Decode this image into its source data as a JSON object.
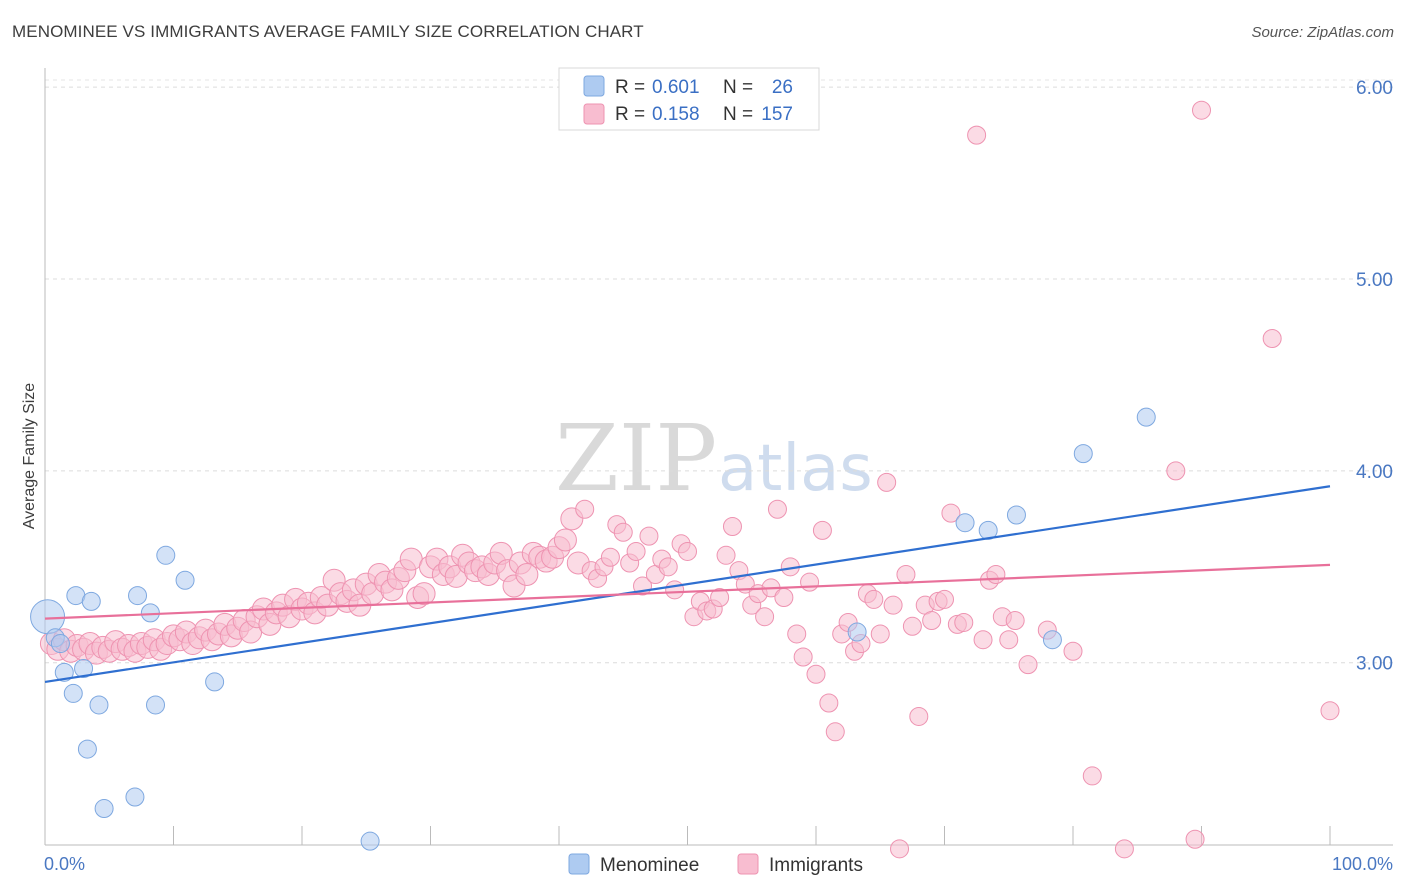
{
  "header": {
    "title": "MENOMINEE VS IMMIGRANTS AVERAGE FAMILY SIZE CORRELATION CHART",
    "source": "Source: ZipAtlas.com"
  },
  "watermark": {
    "zip": "ZIP",
    "atlas": "atlas"
  },
  "legend": {
    "rows": [
      {
        "r_label": "R =",
        "r_value": "0.601",
        "n_label": "N =",
        "n_value": "26",
        "color": "#aecbf1"
      },
      {
        "r_label": "R =",
        "r_value": "0.158",
        "n_label": "N =",
        "n_value": "157",
        "color": "#f8bdd0"
      }
    ]
  },
  "bottom_legend": [
    {
      "label": "Menominee",
      "color": "#aecbf1"
    },
    {
      "label": "Immigrants",
      "color": "#f8bdd0"
    }
  ],
  "chart_data": {
    "type": "scatter",
    "title": "MENOMINEE VS IMMIGRANTS AVERAGE FAMILY SIZE CORRELATION CHART",
    "xlabel": "",
    "ylabel": "Average Family Size",
    "xlim": [
      0,
      100
    ],
    "ylim": [
      2.05,
      6.1
    ],
    "x_tick_labels": [
      "0.0%",
      "100.0%"
    ],
    "y_ticks": [
      3.0,
      4.0,
      5.0,
      6.0
    ],
    "y_tick_labels": [
      "3.00",
      "4.00",
      "5.00",
      "6.00"
    ],
    "grid": true,
    "legend_position": "top-center",
    "series": [
      {
        "name": "Menominee",
        "color": "#aecbf1",
        "stroke": "#7ea8e0",
        "trend_color": "#2f6fd0",
        "trend": [
          [
            0,
            2.9
          ],
          [
            100,
            3.92
          ]
        ],
        "points": [
          [
            0.2,
            3.24
          ],
          [
            0.8,
            3.13
          ],
          [
            1.2,
            3.1
          ],
          [
            1.5,
            2.95
          ],
          [
            2.2,
            2.84
          ],
          [
            2.4,
            3.35
          ],
          [
            3.0,
            2.97
          ],
          [
            3.3,
            2.55
          ],
          [
            3.6,
            3.32
          ],
          [
            4.2,
            2.78
          ],
          [
            4.6,
            2.24
          ],
          [
            7.0,
            2.3
          ],
          [
            7.2,
            3.35
          ],
          [
            8.2,
            3.26
          ],
          [
            8.6,
            2.78
          ],
          [
            9.4,
            3.56
          ],
          [
            10.9,
            3.43
          ],
          [
            13.2,
            2.9
          ],
          [
            25.3,
            2.07
          ],
          [
            63.2,
            3.16
          ],
          [
            71.6,
            3.73
          ],
          [
            73.4,
            3.69
          ],
          [
            75.6,
            3.77
          ],
          [
            78.4,
            3.12
          ],
          [
            80.8,
            4.09
          ],
          [
            85.7,
            4.28
          ]
        ]
      },
      {
        "name": "Immigrants",
        "color": "#f8bdd0",
        "stroke": "#ee93b1",
        "trend_color": "#e8709a",
        "trend": [
          [
            0,
            3.23
          ],
          [
            100,
            3.51
          ]
        ],
        "points": [
          [
            0.5,
            3.1
          ],
          [
            1.0,
            3.07
          ],
          [
            1.5,
            3.12
          ],
          [
            2.0,
            3.06
          ],
          [
            2.5,
            3.09
          ],
          [
            3.0,
            3.07
          ],
          [
            3.5,
            3.1
          ],
          [
            4.0,
            3.05
          ],
          [
            4.5,
            3.08
          ],
          [
            5.0,
            3.06
          ],
          [
            5.5,
            3.11
          ],
          [
            6.0,
            3.07
          ],
          [
            6.5,
            3.09
          ],
          [
            7.0,
            3.06
          ],
          [
            7.5,
            3.1
          ],
          [
            8.0,
            3.08
          ],
          [
            8.5,
            3.12
          ],
          [
            9.0,
            3.07
          ],
          [
            9.5,
            3.1
          ],
          [
            10.0,
            3.14
          ],
          [
            10.5,
            3.12
          ],
          [
            11.0,
            3.16
          ],
          [
            11.5,
            3.1
          ],
          [
            12.0,
            3.13
          ],
          [
            12.5,
            3.17
          ],
          [
            13.0,
            3.12
          ],
          [
            13.5,
            3.15
          ],
          [
            14.0,
            3.2
          ],
          [
            14.5,
            3.14
          ],
          [
            15.0,
            3.18
          ],
          [
            15.5,
            3.22
          ],
          [
            16.0,
            3.16
          ],
          [
            16.5,
            3.24
          ],
          [
            17.0,
            3.28
          ],
          [
            17.5,
            3.2
          ],
          [
            18.0,
            3.26
          ],
          [
            18.5,
            3.3
          ],
          [
            19.0,
            3.24
          ],
          [
            19.5,
            3.33
          ],
          [
            20.0,
            3.28
          ],
          [
            20.5,
            3.31
          ],
          [
            21.0,
            3.26
          ],
          [
            21.5,
            3.34
          ],
          [
            22.0,
            3.3
          ],
          [
            22.5,
            3.43
          ],
          [
            23.0,
            3.36
          ],
          [
            23.5,
            3.32
          ],
          [
            24.0,
            3.38
          ],
          [
            24.5,
            3.3
          ],
          [
            25.0,
            3.41
          ],
          [
            25.5,
            3.36
          ],
          [
            26.0,
            3.46
          ],
          [
            26.5,
            3.42
          ],
          [
            27.0,
            3.38
          ],
          [
            27.5,
            3.44
          ],
          [
            28.0,
            3.48
          ],
          [
            28.5,
            3.54
          ],
          [
            29.0,
            3.34
          ],
          [
            29.5,
            3.36
          ],
          [
            30.0,
            3.5
          ],
          [
            30.5,
            3.54
          ],
          [
            31.0,
            3.46
          ],
          [
            31.5,
            3.5
          ],
          [
            32.0,
            3.45
          ],
          [
            32.5,
            3.56
          ],
          [
            33.0,
            3.52
          ],
          [
            33.5,
            3.48
          ],
          [
            34.0,
            3.5
          ],
          [
            34.5,
            3.46
          ],
          [
            35.0,
            3.52
          ],
          [
            35.5,
            3.57
          ],
          [
            36.0,
            3.48
          ],
          [
            36.5,
            3.4
          ],
          [
            37.0,
            3.52
          ],
          [
            37.5,
            3.46
          ],
          [
            38.0,
            3.57
          ],
          [
            38.5,
            3.55
          ],
          [
            39.0,
            3.53
          ],
          [
            39.5,
            3.55
          ],
          [
            40.0,
            3.6
          ],
          [
            40.5,
            3.64
          ],
          [
            41.0,
            3.75
          ],
          [
            41.5,
            3.52
          ],
          [
            42.0,
            3.8
          ],
          [
            42.5,
            3.48
          ],
          [
            43.0,
            3.44
          ],
          [
            43.5,
            3.5
          ],
          [
            44.0,
            3.55
          ],
          [
            44.5,
            3.72
          ],
          [
            45.0,
            3.68
          ],
          [
            45.5,
            3.52
          ],
          [
            46.0,
            3.58
          ],
          [
            46.5,
            3.4
          ],
          [
            47.0,
            3.66
          ],
          [
            47.5,
            3.46
          ],
          [
            48.0,
            3.54
          ],
          [
            48.5,
            3.5
          ],
          [
            49.0,
            3.38
          ],
          [
            49.5,
            3.62
          ],
          [
            50.0,
            3.58
          ],
          [
            50.5,
            3.24
          ],
          [
            51.0,
            3.32
          ],
          [
            51.5,
            3.27
          ],
          [
            52.0,
            3.28
          ],
          [
            52.5,
            3.34
          ],
          [
            53.0,
            3.56
          ],
          [
            53.5,
            3.71
          ],
          [
            54.0,
            3.48
          ],
          [
            54.5,
            3.41
          ],
          [
            55.0,
            3.3
          ],
          [
            55.5,
            3.36
          ],
          [
            56.0,
            3.24
          ],
          [
            56.5,
            3.39
          ],
          [
            57.0,
            3.8
          ],
          [
            57.5,
            3.34
          ],
          [
            58.0,
            3.5
          ],
          [
            58.5,
            3.15
          ],
          [
            59.0,
            3.03
          ],
          [
            59.5,
            3.42
          ],
          [
            60.0,
            2.94
          ],
          [
            60.5,
            3.69
          ],
          [
            61.0,
            2.79
          ],
          [
            61.5,
            2.64
          ],
          [
            62.0,
            3.15
          ],
          [
            62.5,
            3.21
          ],
          [
            63.0,
            3.06
          ],
          [
            63.5,
            3.1
          ],
          [
            64.0,
            3.36
          ],
          [
            64.5,
            3.33
          ],
          [
            65.0,
            3.15
          ],
          [
            65.5,
            3.94
          ],
          [
            66.0,
            3.3
          ],
          [
            66.5,
            2.03
          ],
          [
            67.0,
            3.46
          ],
          [
            67.5,
            3.19
          ],
          [
            68.0,
            2.72
          ],
          [
            68.5,
            3.3
          ],
          [
            69.0,
            3.22
          ],
          [
            69.5,
            3.32
          ],
          [
            70.0,
            3.33
          ],
          [
            70.5,
            3.78
          ],
          [
            71.0,
            3.2
          ],
          [
            71.5,
            3.21
          ],
          [
            72.5,
            5.75
          ],
          [
            73.0,
            3.12
          ],
          [
            73.5,
            3.43
          ],
          [
            74.0,
            3.46
          ],
          [
            74.5,
            3.24
          ],
          [
            75.0,
            3.12
          ],
          [
            75.5,
            3.22
          ],
          [
            76.5,
            2.99
          ],
          [
            78.0,
            3.17
          ],
          [
            80.0,
            3.06
          ],
          [
            81.5,
            2.41
          ],
          [
            84.0,
            2.03
          ],
          [
            88.0,
            4.0
          ],
          [
            89.5,
            2.08
          ],
          [
            90.0,
            5.88
          ],
          [
            95.5,
            4.69
          ],
          [
            100.0,
            2.75
          ]
        ]
      }
    ]
  }
}
